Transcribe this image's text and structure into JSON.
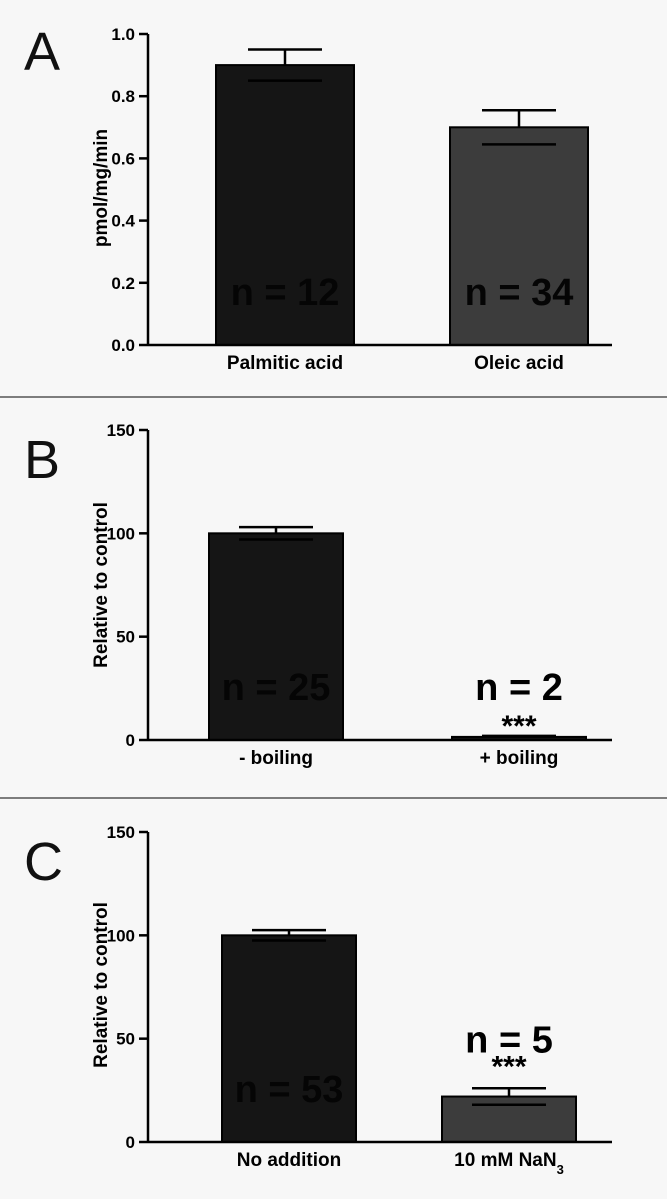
{
  "chart_data": [
    {
      "type": "bar",
      "panel": "A",
      "categories": [
        "Palmitic acid",
        "Oleic acid"
      ],
      "values": [
        0.9,
        0.7
      ],
      "errors": [
        0.05,
        0.055
      ],
      "n_labels": [
        "n = 12",
        "n = 34"
      ],
      "significance": [
        "",
        ""
      ],
      "ylabel": "pmol/mg/min",
      "ylim": [
        0,
        1.0
      ],
      "yticks": [
        0.0,
        0.2,
        0.4,
        0.6,
        0.8,
        1.0
      ],
      "ytick_labels": [
        "0.0",
        "0.2",
        "0.4",
        "0.6",
        "0.8",
        "1.0"
      ],
      "bar_colors": [
        "#151515",
        "#3c3c3c"
      ],
      "grid": false
    },
    {
      "type": "bar",
      "panel": "B",
      "categories": [
        "- boiling",
        "+ boiling"
      ],
      "values": [
        100,
        1.5
      ],
      "errors": [
        3,
        0.5
      ],
      "n_labels": [
        "n = 25",
        "n = 2"
      ],
      "significance": [
        "",
        "***"
      ],
      "ylabel": "Relative to control",
      "ylim": [
        0,
        150
      ],
      "yticks": [
        0,
        50,
        100,
        150
      ],
      "ytick_labels": [
        "0",
        "50",
        "100",
        "150"
      ],
      "bar_colors": [
        "#151515",
        "#151515"
      ],
      "grid": false
    },
    {
      "type": "bar",
      "panel": "C",
      "categories": [
        "No addition",
        "10 mM NaN3"
      ],
      "values": [
        100,
        22
      ],
      "errors": [
        2.5,
        4
      ],
      "n_labels": [
        "n = 53",
        "n = 5"
      ],
      "significance": [
        "",
        "***"
      ],
      "ylabel": "Relative to control",
      "ylim": [
        0,
        150
      ],
      "yticks": [
        0,
        50,
        100,
        150
      ],
      "ytick_labels": [
        "0",
        "50",
        "100",
        "150"
      ],
      "bar_colors": [
        "#151515",
        "#3c3c3c"
      ],
      "grid": false
    }
  ]
}
